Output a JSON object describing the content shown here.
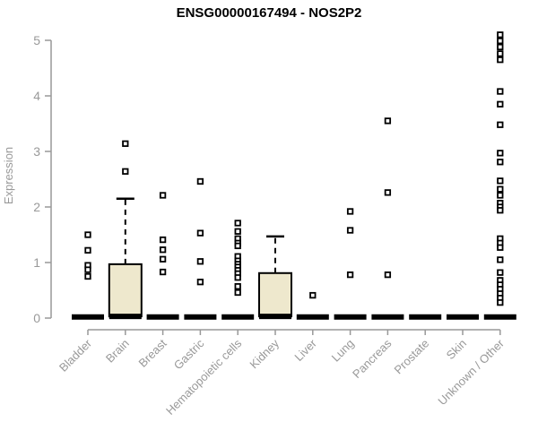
{
  "chart_data": {
    "type": "boxplot",
    "title": "ENSG00000167494 - NOS2P2",
    "ylabel": "Expression",
    "xlabel": "",
    "ylim": [
      0,
      5
    ],
    "yticks": [
      0,
      1,
      2,
      3,
      4,
      5
    ],
    "grid": false,
    "legend": "none",
    "colors": {
      "box_fill": "#EEE8CD",
      "box_stroke": "#000000",
      "median": "#000000",
      "outlier_stroke": "#000000",
      "outlier_fill": "#ffffff",
      "axis_line": "#999999",
      "tick_label": "#999999",
      "title": "#000000"
    },
    "categories": [
      "Bladder",
      "Brain",
      "Breast",
      "Gastric",
      "Hematopoietic cells",
      "Kidney",
      "Liver",
      "Lung",
      "Pancreas",
      "Prostate",
      "Skin",
      "Unknown / Other"
    ],
    "boxes": [
      {
        "category": "Bladder",
        "median": 0.02,
        "q1": 0,
        "q3": 0,
        "whisker_high": 0,
        "outliers": [
          1.5,
          1.22,
          0.95,
          0.87,
          0.75
        ]
      },
      {
        "category": "Brain",
        "median": 0.03,
        "q1": 0.03,
        "q3": 0.97,
        "whisker_high": 2.15,
        "outliers": [
          3.14,
          2.64
        ]
      },
      {
        "category": "Breast",
        "median": 0.02,
        "q1": 0,
        "q3": 0,
        "whisker_high": 0,
        "outliers": [
          2.21,
          1.41,
          1.23,
          1.06,
          0.83
        ]
      },
      {
        "category": "Gastric",
        "median": 0.02,
        "q1": 0,
        "q3": 0,
        "whisker_high": 0,
        "outliers": [
          2.46,
          1.53,
          1.02,
          0.65
        ]
      },
      {
        "category": "Hematopoietic cells",
        "median": 0.02,
        "q1": 0,
        "q3": 0,
        "whisker_high": 0,
        "outliers": [
          1.71,
          1.56,
          1.43,
          1.35,
          1.3,
          1.11,
          1.03,
          0.97,
          0.92,
          0.86,
          0.8,
          0.73,
          0.57,
          0.46
        ]
      },
      {
        "category": "Kidney",
        "median": 0.03,
        "q1": 0.03,
        "q3": 0.81,
        "whisker_high": 1.47,
        "outliers": []
      },
      {
        "category": "Liver",
        "median": 0.02,
        "q1": 0,
        "q3": 0,
        "whisker_high": 0,
        "outliers": [
          0.41
        ]
      },
      {
        "category": "Lung",
        "median": 0.02,
        "q1": 0,
        "q3": 0,
        "whisker_high": 0,
        "outliers": [
          1.92,
          1.58,
          0.78
        ]
      },
      {
        "category": "Pancreas",
        "median": 0.02,
        "q1": 0,
        "q3": 0,
        "whisker_high": 0,
        "outliers": [
          3.55,
          2.26,
          0.78
        ]
      },
      {
        "category": "Prostate",
        "median": 0.02,
        "q1": 0,
        "q3": 0,
        "whisker_high": 0,
        "outliers": []
      },
      {
        "category": "Skin",
        "median": 0.02,
        "q1": 0,
        "q3": 0,
        "whisker_high": 0,
        "outliers": []
      },
      {
        "category": "Unknown / Other",
        "median": 0.02,
        "q1": 0,
        "q3": 0,
        "whisker_high": 0,
        "outliers": [
          5.1,
          4.99,
          4.88,
          4.76,
          4.65,
          4.08,
          3.85,
          3.48,
          2.97,
          2.81,
          2.47,
          2.32,
          2.21,
          2.07,
          2.0,
          1.94,
          1.43,
          1.35,
          1.27,
          1.05,
          0.82,
          0.68,
          0.6,
          0.52,
          0.44,
          0.36,
          0.28
        ]
      }
    ]
  }
}
